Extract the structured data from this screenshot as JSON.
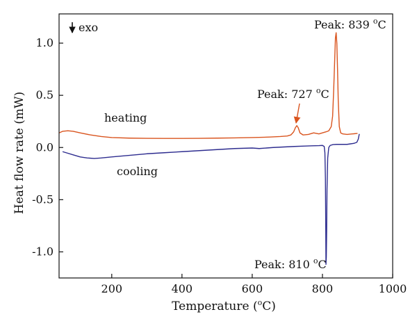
{
  "chart_data": {
    "type": "line",
    "title": "",
    "xlabel": "Temperature",
    "xlabel_unit_prefix": "(",
    "xlabel_unit_super": "o",
    "xlabel_unit_suffix": "C)",
    "ylabel": "Heat flow rate (mW)",
    "xlim": [
      50,
      1000
    ],
    "ylim": [
      -1.25,
      1.28
    ],
    "x_ticks": [
      200,
      400,
      600,
      800,
      1000
    ],
    "y_ticks": [
      1.0,
      0.5,
      0.0,
      -0.5,
      -1.0
    ],
    "x_tick_labels": [
      "200",
      "400",
      "600",
      "800",
      "1000"
    ],
    "y_tick_labels": [
      "1.0",
      "0.5",
      "0.0",
      "-0.5",
      "-1.0"
    ],
    "grid": false,
    "legend": "none",
    "series": [
      {
        "label": "heating",
        "color": "#d9541e",
        "x": [
          50,
          60,
          75,
          90,
          110,
          140,
          170,
          200,
          250,
          300,
          350,
          400,
          450,
          500,
          550,
          600,
          650,
          680,
          700,
          710,
          718,
          723,
          727,
          731,
          736,
          745,
          760,
          775,
          790,
          800,
          810,
          818,
          825,
          829,
          832,
          835,
          837,
          839,
          841,
          843,
          845,
          848,
          852,
          858,
          870,
          885,
          900
        ],
        "y": [
          0.14,
          0.155,
          0.16,
          0.155,
          0.14,
          0.12,
          0.105,
          0.095,
          0.09,
          0.088,
          0.087,
          0.087,
          0.088,
          0.09,
          0.092,
          0.095,
          0.1,
          0.105,
          0.11,
          0.12,
          0.15,
          0.19,
          0.21,
          0.19,
          0.14,
          0.12,
          0.125,
          0.14,
          0.13,
          0.14,
          0.15,
          0.16,
          0.2,
          0.3,
          0.55,
          0.85,
          1.05,
          1.1,
          1.0,
          0.75,
          0.45,
          0.2,
          0.14,
          0.13,
          0.125,
          0.13,
          0.135
        ]
      },
      {
        "label": "cooling",
        "color": "#2d2c8f",
        "x": [
          905,
          902,
          898,
          890,
          880,
          870,
          860,
          850,
          840,
          830,
          822,
          818,
          815,
          813,
          812,
          811,
          810,
          809.5,
          808.5,
          807,
          805,
          800,
          790,
          770,
          750,
          720,
          690,
          660,
          640,
          620,
          600,
          550,
          500,
          450,
          400,
          350,
          300,
          250,
          200,
          170,
          150,
          130,
          110,
          90,
          70,
          60
        ],
        "y": [
          0.13,
          0.08,
          0.05,
          0.04,
          0.035,
          0.03,
          0.03,
          0.03,
          0.03,
          0.028,
          0.02,
          0.0,
          -0.1,
          -0.4,
          -0.8,
          -1.05,
          -1.12,
          -0.8,
          -0.3,
          -0.05,
          0.01,
          0.02,
          0.018,
          0.016,
          0.014,
          0.01,
          0.005,
          0.0,
          -0.005,
          -0.01,
          -0.005,
          -0.01,
          -0.02,
          -0.03,
          -0.04,
          -0.05,
          -0.06,
          -0.075,
          -0.09,
          -0.1,
          -0.105,
          -0.1,
          -0.09,
          -0.07,
          -0.05,
          -0.04
        ]
      }
    ],
    "annotations": {
      "exo_text": "exo",
      "peak_839_prefix": "Peak: 839 ",
      "peak_727_prefix": "Peak: 727 ",
      "peak_810_prefix": "Peak: 810 ",
      "degree_super": "o",
      "degree_suffix": "C",
      "heating_label": "heating",
      "cooling_label": "cooling"
    }
  }
}
